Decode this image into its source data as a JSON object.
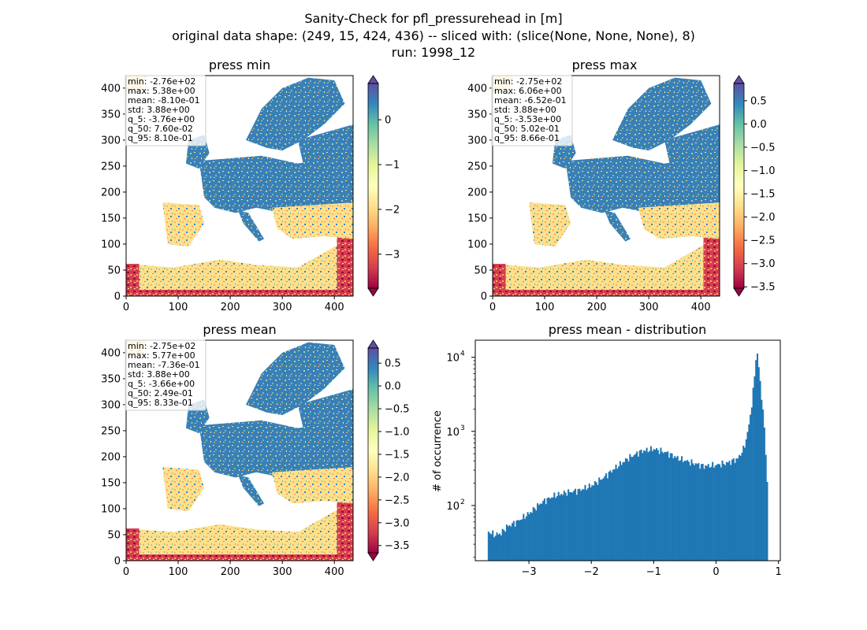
{
  "suptitle": [
    "Sanity-Check for pfl_pressurehead in [m]",
    "original data shape: (249, 15, 424, 436) -- sliced with: (slice(None, None, None), 8)",
    "run: 1998_12"
  ],
  "chart_data": [
    {
      "type": "heatmap",
      "title": "press min",
      "xticks": [
        0,
        100,
        200,
        300,
        400
      ],
      "yticks": [
        0,
        50,
        100,
        150,
        200,
        250,
        300,
        350,
        400
      ],
      "xlim": [
        0,
        436
      ],
      "ylim": [
        0,
        424
      ],
      "colorbar": {
        "min": -3.76,
        "max": 0.81,
        "ticks": [
          -3,
          -2,
          -1,
          0
        ],
        "tick_labels": [
          "−3",
          "−2",
          "−1",
          "0"
        ]
      },
      "colormap": "Spectral",
      "stats": [
        "min: -2.76e+02",
        "max: 5.38e+00",
        "mean: -8.10e-01",
        "std: 3.88e+00",
        "q_5: -3.76e+00",
        "q_50: 7.60e-02",
        "q_95: 8.10e-01"
      ]
    },
    {
      "type": "heatmap",
      "title": "press max",
      "xticks": [
        0,
        100,
        200,
        300,
        400
      ],
      "yticks": [
        0,
        50,
        100,
        150,
        200,
        250,
        300,
        350,
        400
      ],
      "xlim": [
        0,
        436
      ],
      "ylim": [
        0,
        424
      ],
      "colorbar": {
        "min": -3.53,
        "max": 0.87,
        "ticks": [
          -3.5,
          -3.0,
          -2.5,
          -2.0,
          -1.5,
          -1.0,
          -0.5,
          0.0,
          0.5
        ],
        "tick_labels": [
          "−3.5",
          "−3.0",
          "−2.5",
          "−2.0",
          "−1.5",
          "−1.0",
          "−0.5",
          "0.0",
          "0.5"
        ]
      },
      "colormap": "Spectral",
      "stats": [
        "min: -2.75e+02",
        "max: 6.06e+00",
        "mean: -6.52e-01",
        "std: 3.88e+00",
        "q_5: -3.53e+00",
        "q_50: 5.02e-01",
        "q_95: 8.66e-01"
      ]
    },
    {
      "type": "heatmap",
      "title": "press mean",
      "xticks": [
        0,
        100,
        200,
        300,
        400
      ],
      "yticks": [
        0,
        50,
        100,
        150,
        200,
        250,
        300,
        350,
        400
      ],
      "xlim": [
        0,
        436
      ],
      "ylim": [
        0,
        424
      ],
      "colorbar": {
        "min": -3.66,
        "max": 0.83,
        "ticks": [
          -3.5,
          -3.0,
          -2.5,
          -2.0,
          -1.5,
          -1.0,
          -0.5,
          0.0,
          0.5
        ],
        "tick_labels": [
          "−3.5",
          "−3.0",
          "−2.5",
          "−2.0",
          "−1.5",
          "−1.0",
          "−0.5",
          "0.0",
          "0.5"
        ]
      },
      "colormap": "Spectral",
      "stats": [
        "min: -2.75e+02",
        "max: 5.77e+00",
        "mean: -7.36e-01",
        "std: 3.88e+00",
        "q_5: -3.66e+00",
        "q_50: 2.49e-01",
        "q_95: 8.33e-01"
      ]
    },
    {
      "type": "bar",
      "title": "press mean - distribution",
      "ylabel": "# of occurrence",
      "xlabel": "",
      "yscale": "log",
      "xlim": [
        -3.86,
        1.03
      ],
      "ylim": [
        18,
        17000
      ],
      "xticks": [
        -3,
        -2,
        -1,
        0,
        1
      ],
      "xtick_labels": [
        "−3",
        "−2",
        "−1",
        "0",
        "1"
      ],
      "yticks": [
        100,
        1000,
        10000
      ],
      "ytick_labels": [
        "10",
        "10",
        "10"
      ],
      "ytick_exponents": [
        "2",
        "3",
        "4"
      ],
      "bin_range": [
        -3.66,
        0.83
      ],
      "anchors": [
        [
          -3.66,
          45
        ],
        [
          -3.55,
          40
        ],
        [
          -3.45,
          42
        ],
        [
          -3.35,
          52
        ],
        [
          -3.2,
          60
        ],
        [
          -3.0,
          78
        ],
        [
          -2.8,
          110
        ],
        [
          -2.6,
          135
        ],
        [
          -2.4,
          150
        ],
        [
          -2.2,
          160
        ],
        [
          -2.0,
          185
        ],
        [
          -1.8,
          240
        ],
        [
          -1.6,
          330
        ],
        [
          -1.4,
          440
        ],
        [
          -1.2,
          540
        ],
        [
          -1.0,
          580
        ],
        [
          -0.8,
          520
        ],
        [
          -0.6,
          430
        ],
        [
          -0.4,
          380
        ],
        [
          -0.2,
          340
        ],
        [
          0.0,
          350
        ],
        [
          0.2,
          380
        ],
        [
          0.35,
          430
        ],
        [
          0.45,
          600
        ],
        [
          0.52,
          1100
        ],
        [
          0.58,
          2600
        ],
        [
          0.62,
          6000
        ],
        [
          0.65,
          13000
        ],
        [
          0.68,
          8000
        ],
        [
          0.72,
          3500
        ],
        [
          0.76,
          1600
        ],
        [
          0.8,
          480
        ],
        [
          0.83,
          120
        ]
      ],
      "bar_color": "#1f77b4"
    }
  ]
}
